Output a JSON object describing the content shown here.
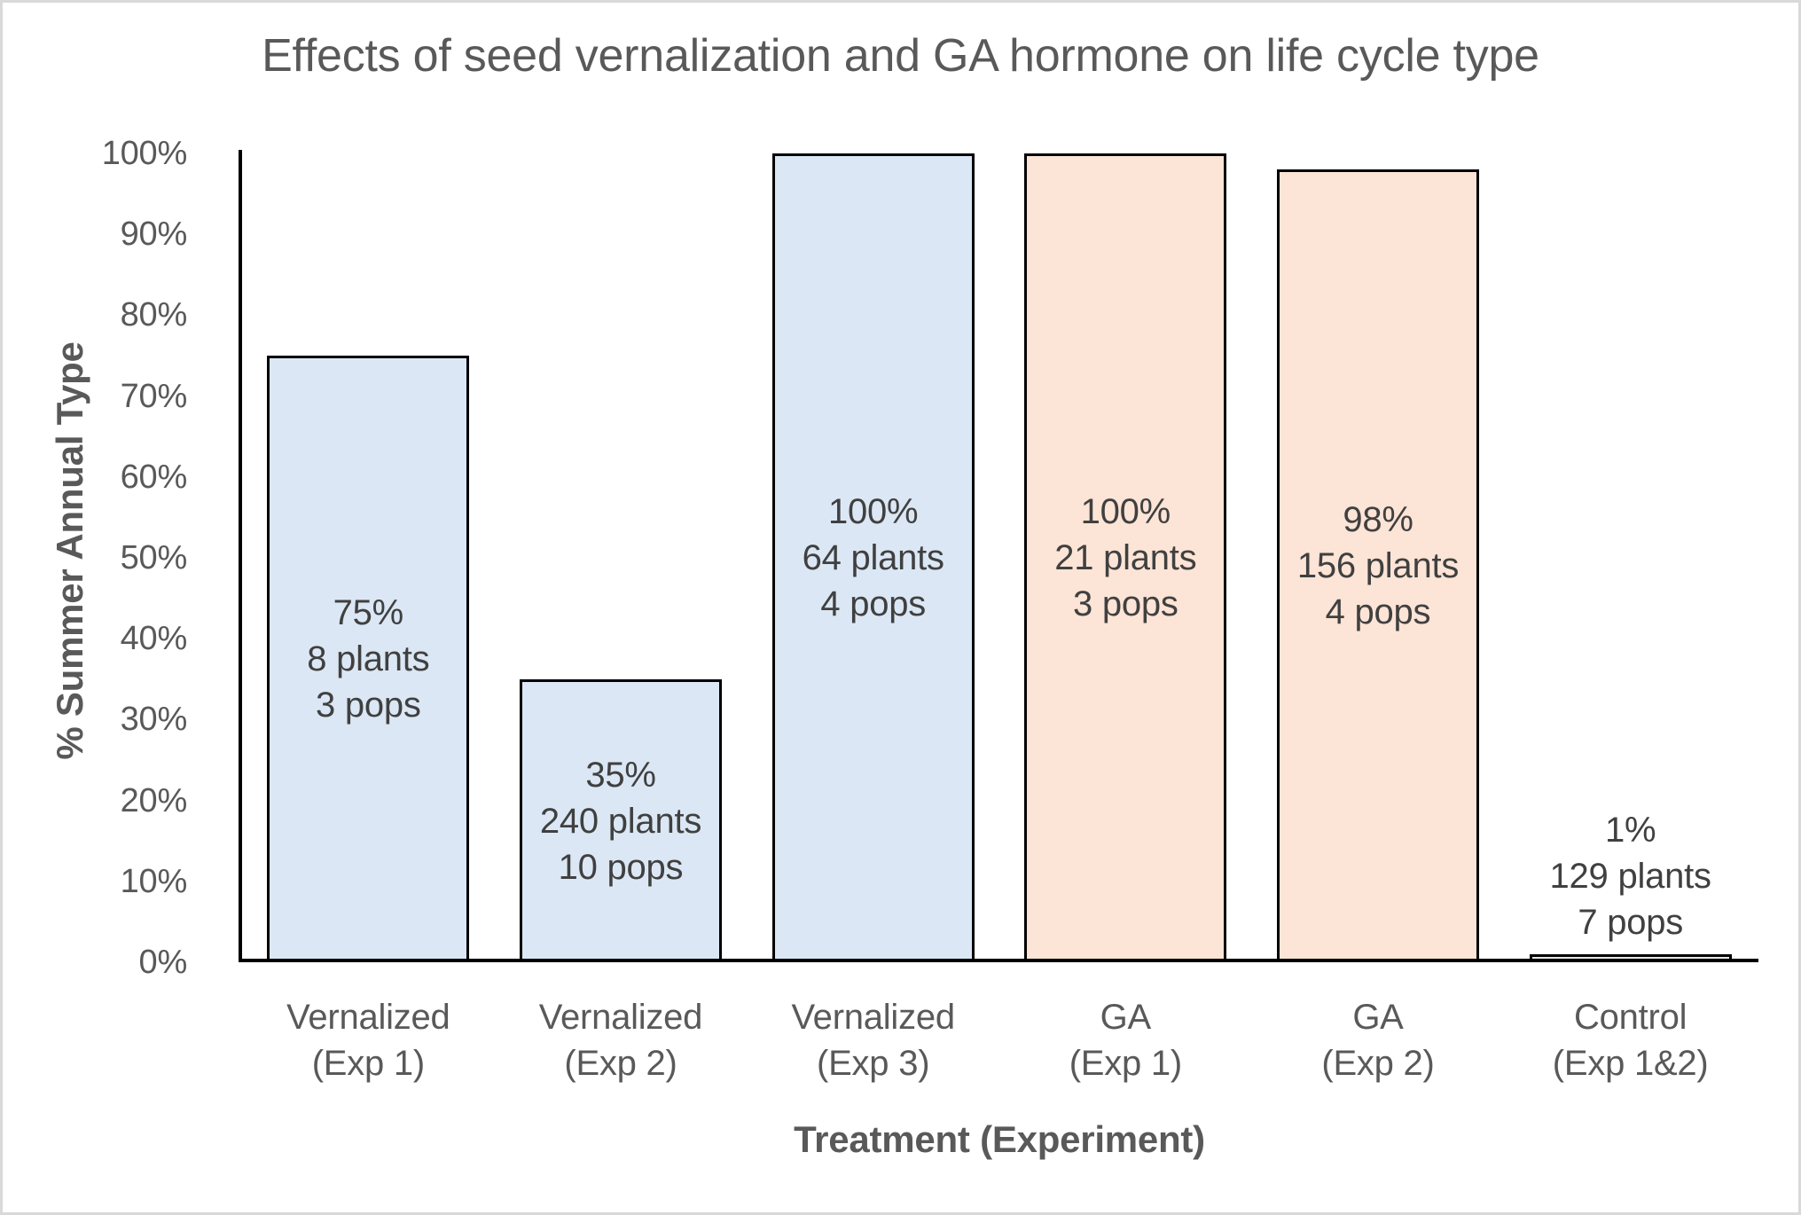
{
  "window": {
    "background_color": "#ffffff",
    "frame_border_color": "#d9d9d9"
  },
  "chart_data": {
    "type": "bar",
    "title": "Effects of seed vernalization and GA hormone on life cycle type",
    "xlabel": "Treatment (Experiment)",
    "ylabel": "% Summer Annual Type",
    "ylim": [
      0,
      100
    ],
    "grid": false,
    "legend": "none",
    "axis_line_color": "#000000",
    "bar_border_color": "#000000",
    "axis_text_color": "#595959",
    "bar_label_text_color": "#404040",
    "yticks": [
      {
        "value": 0,
        "label": "0%"
      },
      {
        "value": 10,
        "label": "10%"
      },
      {
        "value": 20,
        "label": "20%"
      },
      {
        "value": 30,
        "label": "30%"
      },
      {
        "value": 40,
        "label": "40%"
      },
      {
        "value": 50,
        "label": "50%"
      },
      {
        "value": 60,
        "label": "60%"
      },
      {
        "value": 70,
        "label": "70%"
      },
      {
        "value": 80,
        "label": "80%"
      },
      {
        "value": 90,
        "label": "90%"
      },
      {
        "value": 100,
        "label": "100%"
      }
    ],
    "bars": [
      {
        "category_lines": [
          "Vernalized",
          "(Exp 1)"
        ],
        "value": 75,
        "fill": "#dbe7f4",
        "label_lines": [
          "75%",
          "8 plants",
          "3 pops"
        ],
        "label_position": "inside-center"
      },
      {
        "category_lines": [
          "Vernalized",
          "(Exp 2)"
        ],
        "value": 35,
        "fill": "#dbe7f4",
        "label_lines": [
          "35%",
          "240 plants",
          "10 pops"
        ],
        "label_position": "inside-center"
      },
      {
        "category_lines": [
          "Vernalized",
          "(Exp 3)"
        ],
        "value": 100,
        "fill": "#dbe7f4",
        "label_lines": [
          "100%",
          "64 plants",
          "4 pops"
        ],
        "label_position": "inside-center"
      },
      {
        "category_lines": [
          "GA",
          "(Exp 1)"
        ],
        "value": 100,
        "fill": "#fce4d6",
        "label_lines": [
          "100%",
          "21 plants",
          "3 pops"
        ],
        "label_position": "inside-center"
      },
      {
        "category_lines": [
          "GA",
          "(Exp 2)"
        ],
        "value": 98,
        "fill": "#fce4d6",
        "label_lines": [
          "98%",
          "156 plants",
          "4 pops"
        ],
        "label_position": "inside-center"
      },
      {
        "category_lines": [
          "Control",
          "(Exp 1&2)"
        ],
        "value": 1,
        "fill": "#e7e6e6",
        "label_lines": [
          "1%",
          "129 plants",
          "7 pops"
        ],
        "label_position": "above"
      }
    ]
  }
}
